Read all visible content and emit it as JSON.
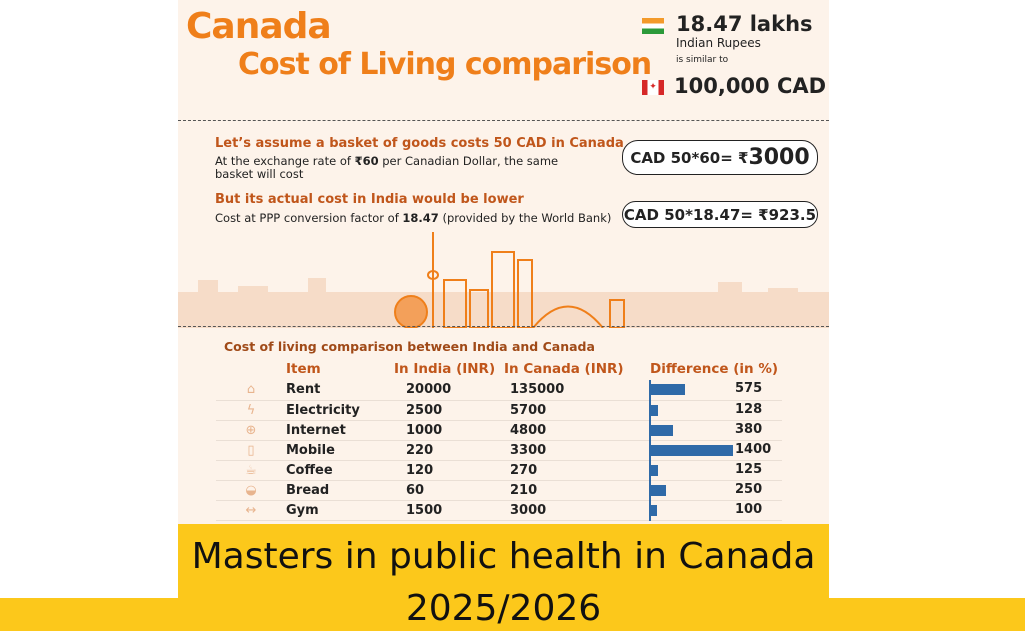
{
  "infographic": {
    "title_line1": "Canada",
    "title_line2": "Cost of Living comparison",
    "equivalence": {
      "inr_amount": "18.47 lakhs",
      "inr_label": "Indian Rupees",
      "connector": "is similar to",
      "cad_amount": "100,000 CAD"
    },
    "basket": {
      "heading": "Let’s assume a basket of goods costs 50 CAD in Canada",
      "text_pre": "At the exchange rate of ",
      "rate": "₹60",
      "text_post": " per Canadian Dollar, the same basket will cost",
      "pill1_pre": "CAD 50*60= ₹",
      "pill1_value": "3000",
      "heading2": "But its actual cost in India would be lower",
      "text2_pre": "Cost at PPP conversion factor of ",
      "factor": "18.47",
      "text2_post": " (provided by the World Bank)",
      "pill2": "CAD 50*18.47= ₹923.5"
    },
    "table": {
      "title": "Cost of living comparison between India and Canada",
      "headers": [
        "Item",
        "In India (INR)",
        "In Canada (INR)",
        "Difference (in %)"
      ],
      "rows": [
        {
          "icon": "house-icon",
          "glyph": "⌂",
          "item": "Rent",
          "india": "20000",
          "canada": "135000",
          "diff": "575"
        },
        {
          "icon": "lightning-icon",
          "glyph": "ϟ",
          "item": "Electricity",
          "india": "2500",
          "canada": "5700",
          "diff": "128"
        },
        {
          "icon": "globe-icon",
          "glyph": "⊕",
          "item": "Internet",
          "india": "1000",
          "canada": "4800",
          "diff": "380"
        },
        {
          "icon": "phone-icon",
          "glyph": "▯",
          "item": "Mobile",
          "india": "220",
          "canada": "3300",
          "diff": "1400"
        },
        {
          "icon": "coffee-icon",
          "glyph": "☕",
          "item": "Coffee",
          "india": "120",
          "canada": "270",
          "diff": "125"
        },
        {
          "icon": "bread-icon",
          "glyph": "◒",
          "item": "Bread",
          "india": "60",
          "canada": "210",
          "diff": "250"
        },
        {
          "icon": "dumbbell-icon",
          "glyph": "↔",
          "item": "Gym",
          "india": "1500",
          "canada": "3000",
          "diff": "100"
        }
      ],
      "bar_color": "#2f6aa8"
    }
  },
  "caption": {
    "line1": "Masters in public health in Canada",
    "line2": "2025/2026",
    "bg_color": "#fcc81b"
  }
}
